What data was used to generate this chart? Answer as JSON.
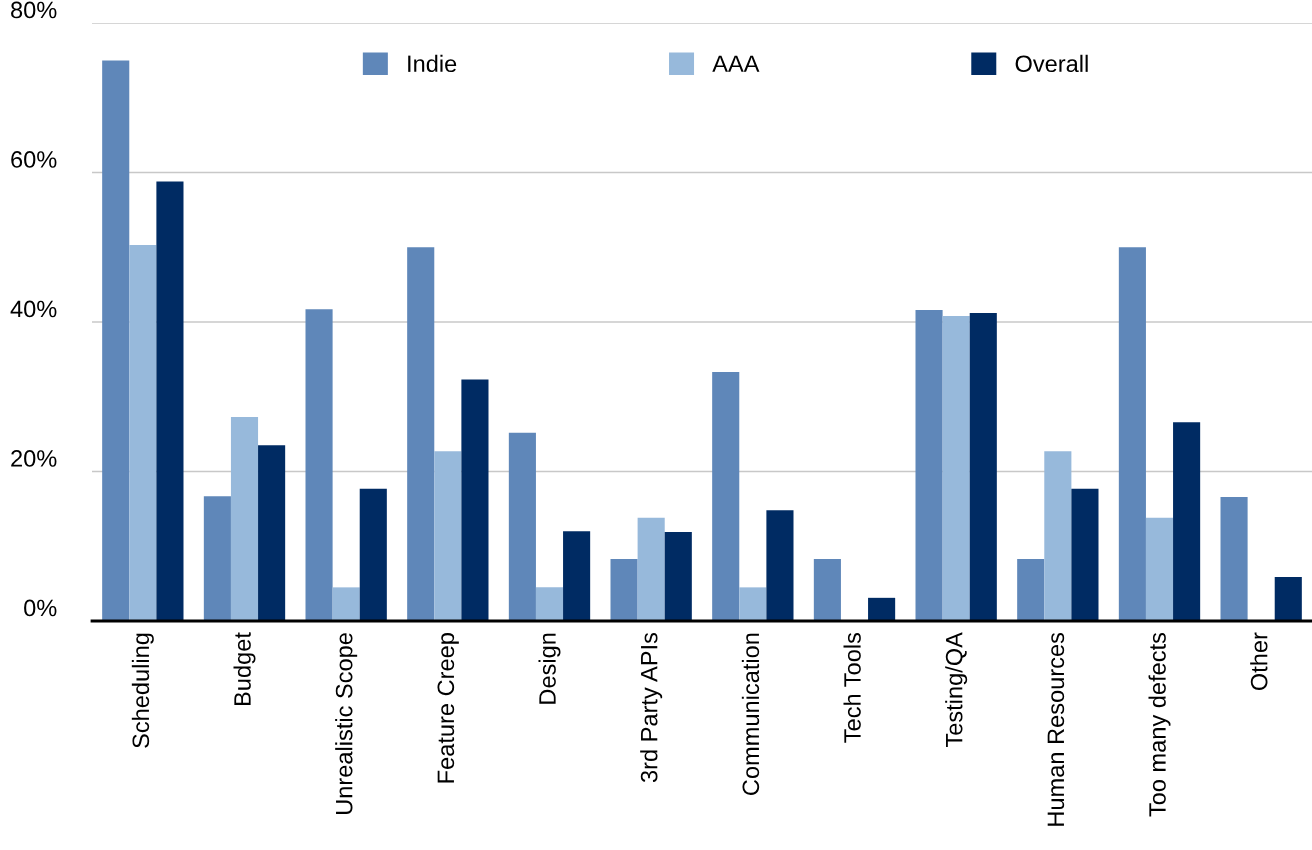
{
  "chart_data": {
    "type": "bar",
    "categories": [
      "Scheduling",
      "Budget",
      "Unrealistic Scope",
      "Feature Creep",
      "Design",
      "3rd Party APIs",
      "Communication",
      "Tech Tools",
      "Testing/QA",
      "Human Resources",
      "Too many defects",
      "Other"
    ],
    "series": [
      {
        "name": "Indie",
        "color": "#5f87b9",
        "values": [
          75,
          16.7,
          41.7,
          50,
          25.2,
          8.3,
          33.3,
          8.3,
          41.6,
          8.3,
          50,
          16.6
        ]
      },
      {
        "name": "AAA",
        "color": "#97b9db",
        "values": [
          50.3,
          27.3,
          4.5,
          22.7,
          4.5,
          13.8,
          4.5,
          0,
          40.8,
          22.7,
          13.8,
          0
        ]
      },
      {
        "name": "Overall",
        "color": "#002b63",
        "values": [
          58.8,
          23.5,
          17.7,
          32.3,
          12,
          11.9,
          14.8,
          3.1,
          41.2,
          17.7,
          26.6,
          5.9
        ]
      }
    ],
    "ylim": [
      0,
      80
    ],
    "yticks": [
      {
        "value": 0,
        "label": "0%"
      },
      {
        "value": 20,
        "label": "20%"
      },
      {
        "value": 40,
        "label": "40%"
      },
      {
        "value": 60,
        "label": "60%"
      },
      {
        "value": 80,
        "label": "80%"
      }
    ],
    "grid": "y",
    "legend": "top"
  }
}
